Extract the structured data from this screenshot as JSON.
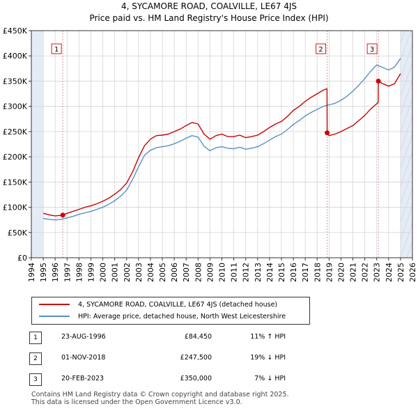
{
  "title_line1": "4, SYCAMORE ROAD, COALVILLE, LE67 4JS",
  "title_line2": "Price paid vs. HM Land Registry's House Price Index (HPI)",
  "colors": {
    "property": "#cc0000",
    "hpi": "#5b8ec5",
    "shade": "#e6ecf5",
    "grid": "#d4d4d4",
    "event_line": "#dd8888"
  },
  "chart_data": {
    "type": "line",
    "title": "Price paid vs. HM Land Registry's House Price Index (HPI)",
    "xlabel": "",
    "ylabel": "",
    "xlim": [
      1994,
      2026
    ],
    "ylim": [
      0,
      450000
    ],
    "x_ticks": [
      "1994",
      "1995",
      "1996",
      "1997",
      "1998",
      "1999",
      "2000",
      "2001",
      "2002",
      "2003",
      "2004",
      "2005",
      "2006",
      "2007",
      "2008",
      "2009",
      "2010",
      "2011",
      "2012",
      "2013",
      "2014",
      "2015",
      "2016",
      "2017",
      "2018",
      "2019",
      "2020",
      "2021",
      "2022",
      "2023",
      "2024",
      "2025",
      "2026"
    ],
    "y_ticks": [
      {
        "value": 0,
        "label": "£0"
      },
      {
        "value": 50000,
        "label": "£50K"
      },
      {
        "value": 100000,
        "label": "£100K"
      },
      {
        "value": 150000,
        "label": "£150K"
      },
      {
        "value": 200000,
        "label": "£200K"
      },
      {
        "value": 250000,
        "label": "£250K"
      },
      {
        "value": 300000,
        "label": "£300K"
      },
      {
        "value": 350000,
        "label": "£350K"
      },
      {
        "value": 400000,
        "label": "£400K"
      },
      {
        "value": 450000,
        "label": "£450K"
      }
    ],
    "shaded_ranges": [
      [
        1994,
        1995
      ],
      [
        2025,
        2026
      ]
    ],
    "series": [
      {
        "name": "4, SYCAMORE ROAD, COALVILLE, LE67 4JS (detached house)",
        "color": "#cc0000",
        "x": [
          1995.0,
          1995.5,
          1996.0,
          1996.64,
          1997.0,
          1997.5,
          1998.0,
          1998.5,
          1999.0,
          1999.5,
          2000.0,
          2000.5,
          2001.0,
          2001.5,
          2002.0,
          2002.5,
          2003.0,
          2003.5,
          2004.0,
          2004.5,
          2005.0,
          2005.5,
          2006.0,
          2006.5,
          2007.0,
          2007.5,
          2008.0,
          2008.5,
          2009.0,
          2009.5,
          2010.0,
          2010.5,
          2011.0,
          2011.5,
          2012.0,
          2012.5,
          2013.0,
          2013.5,
          2014.0,
          2014.5,
          2015.0,
          2015.5,
          2016.0,
          2016.5,
          2017.0,
          2017.5,
          2018.0,
          2018.5,
          2018.83,
          2018.84,
          2019.0,
          2019.5,
          2020.0,
          2020.5,
          2021.0,
          2021.5,
          2022.0,
          2022.5,
          2023.0,
          2023.13,
          2023.14,
          2023.5,
          2024.0,
          2024.5,
          2025.0
        ],
        "y": [
          88000,
          85000,
          83000,
          84450,
          88000,
          92000,
          96000,
          100000,
          103000,
          107000,
          112000,
          118000,
          126000,
          135000,
          148000,
          170000,
          198000,
          222000,
          235000,
          242000,
          243000,
          245000,
          250000,
          255000,
          262000,
          268000,
          265000,
          245000,
          235000,
          242000,
          245000,
          240000,
          240000,
          243000,
          238000,
          240000,
          243000,
          250000,
          258000,
          265000,
          270000,
          280000,
          292000,
          300000,
          310000,
          318000,
          325000,
          332000,
          335000,
          247500,
          242000,
          245000,
          250000,
          256000,
          262000,
          272000,
          282000,
          295000,
          305000,
          308000,
          350000,
          345000,
          340000,
          345000,
          365000
        ]
      },
      {
        "name": "HPI: Average price, detached house, North West Leicestershire",
        "color": "#5b8ec5",
        "x": [
          1995.0,
          1995.5,
          1996.0,
          1996.5,
          1997.0,
          1997.5,
          1998.0,
          1998.5,
          1999.0,
          1999.5,
          2000.0,
          2000.5,
          2001.0,
          2001.5,
          2002.0,
          2002.5,
          2003.0,
          2003.5,
          2004.0,
          2004.5,
          2005.0,
          2005.5,
          2006.0,
          2006.5,
          2007.0,
          2007.5,
          2008.0,
          2008.5,
          2009.0,
          2009.5,
          2010.0,
          2010.5,
          2011.0,
          2011.5,
          2012.0,
          2012.5,
          2013.0,
          2013.5,
          2014.0,
          2014.5,
          2015.0,
          2015.5,
          2016.0,
          2016.5,
          2017.0,
          2017.5,
          2018.0,
          2018.5,
          2019.0,
          2019.5,
          2020.0,
          2020.5,
          2021.0,
          2021.5,
          2022.0,
          2022.5,
          2023.0,
          2023.5,
          2024.0,
          2024.5,
          2025.0
        ],
        "y": [
          78000,
          76000,
          75000,
          76000,
          79000,
          82000,
          86000,
          89000,
          92000,
          96000,
          100000,
          106000,
          113000,
          122000,
          134000,
          155000,
          180000,
          203000,
          213000,
          218000,
          220000,
          222000,
          226000,
          231000,
          237000,
          242000,
          239000,
          221000,
          212000,
          218000,
          220000,
          217000,
          216000,
          219000,
          215000,
          217000,
          220000,
          226000,
          233000,
          240000,
          245000,
          254000,
          264000,
          272000,
          281000,
          288000,
          294000,
          300000,
          303000,
          306000,
          312000,
          320000,
          330000,
          342000,
          355000,
          370000,
          382000,
          377000,
          372000,
          378000,
          395000
        ]
      }
    ],
    "events": [
      {
        "id": "1",
        "x": 1996.64,
        "price": 84450
      },
      {
        "id": "2",
        "x": 2018.84,
        "price": 247500
      },
      {
        "id": "3",
        "x": 2023.14,
        "price": 350000
      }
    ]
  },
  "legend": {
    "property_label": "4, SYCAMORE ROAD, COALVILLE, LE67 4JS (detached house)",
    "hpi_label": "HPI: Average price, detached house, North West Leicestershire"
  },
  "sales": [
    {
      "num": "1",
      "date": "23-AUG-1996",
      "price": "£84,450",
      "hpi": "11% ↑ HPI"
    },
    {
      "num": "2",
      "date": "01-NOV-2018",
      "price": "£247,500",
      "hpi": "19% ↓ HPI"
    },
    {
      "num": "3",
      "date": "20-FEB-2023",
      "price": "£350,000",
      "hpi": "7% ↓ HPI"
    }
  ],
  "footer": {
    "line1": "Contains HM Land Registry data © Crown copyright and database right 2025.",
    "line2": "This data is licensed under the Open Government Licence v3.0."
  }
}
